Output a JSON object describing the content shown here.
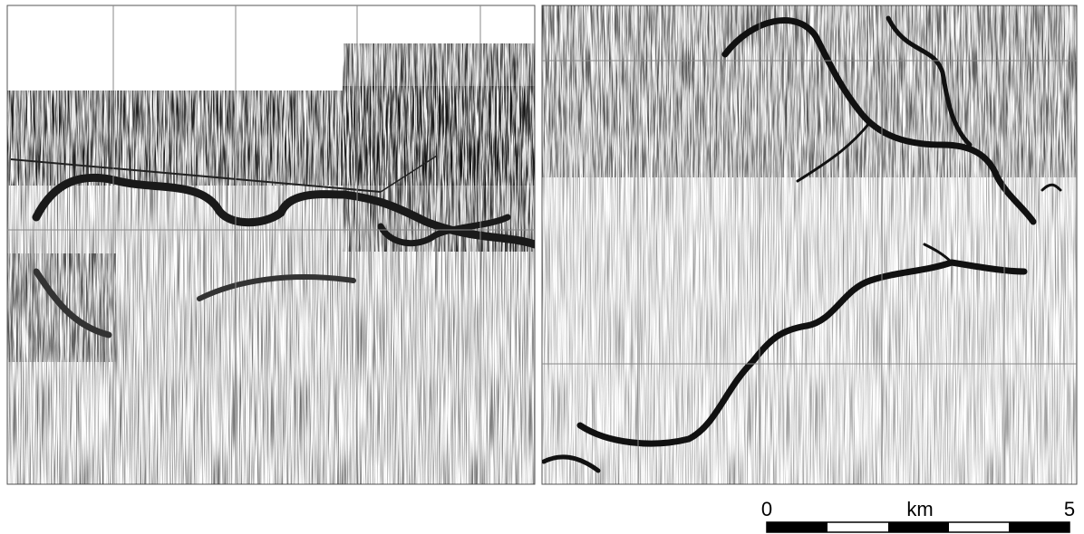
{
  "scale_bar": {
    "start": "0",
    "unit": "km",
    "end": "5"
  }
}
